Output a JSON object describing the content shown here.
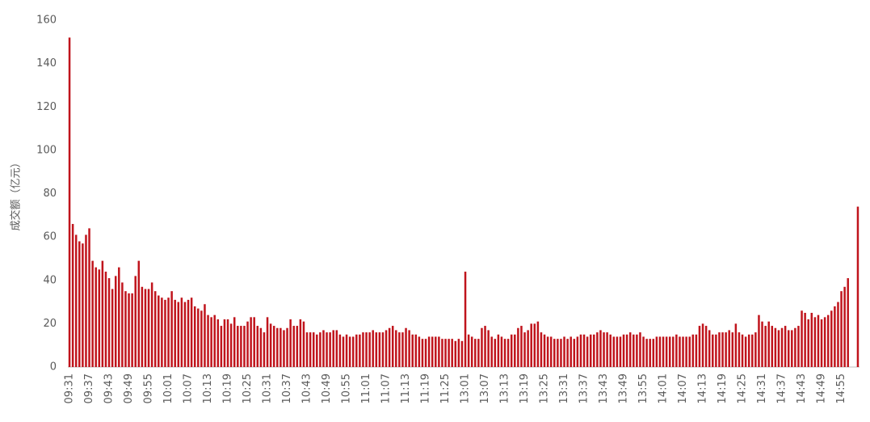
{
  "chart_data": {
    "type": "bar",
    "y_label": "成交额（亿元）",
    "categories": [
      "09:31",
      null,
      null,
      null,
      null,
      null,
      "09:37",
      null,
      null,
      null,
      null,
      null,
      "09:43",
      null,
      null,
      null,
      null,
      null,
      "09:49",
      null,
      null,
      null,
      null,
      null,
      "09:55",
      null,
      null,
      null,
      null,
      null,
      "10:01",
      null,
      null,
      null,
      null,
      null,
      "10:07",
      null,
      null,
      null,
      null,
      null,
      "10:13",
      null,
      null,
      null,
      null,
      null,
      "10:19",
      null,
      null,
      null,
      null,
      null,
      "10:25",
      null,
      null,
      null,
      null,
      null,
      "10:31",
      null,
      null,
      null,
      null,
      null,
      "10:37",
      null,
      null,
      null,
      null,
      null,
      "10:43",
      null,
      null,
      null,
      null,
      null,
      "10:49",
      null,
      null,
      null,
      null,
      null,
      "10:55",
      null,
      null,
      null,
      null,
      null,
      "11:01",
      null,
      null,
      null,
      null,
      null,
      "11:07",
      null,
      null,
      null,
      null,
      null,
      "11:13",
      null,
      null,
      null,
      null,
      null,
      "11:19",
      null,
      null,
      null,
      null,
      null,
      "11:25",
      null,
      null,
      null,
      null,
      null,
      "13:01",
      null,
      null,
      null,
      null,
      null,
      "13:07",
      null,
      null,
      null,
      null,
      null,
      "13:13",
      null,
      null,
      null,
      null,
      null,
      "13:19",
      null,
      null,
      null,
      null,
      null,
      "13:25",
      null,
      null,
      null,
      null,
      null,
      "13:31",
      null,
      null,
      null,
      null,
      null,
      "13:37",
      null,
      null,
      null,
      null,
      null,
      "13:43",
      null,
      null,
      null,
      null,
      null,
      "13:49",
      null,
      null,
      null,
      null,
      null,
      "13:55",
      null,
      null,
      null,
      null,
      null,
      "14:01",
      null,
      null,
      null,
      null,
      null,
      "14:07",
      null,
      null,
      null,
      null,
      null,
      "14:13",
      null,
      null,
      null,
      null,
      null,
      "14:19",
      null,
      null,
      null,
      null,
      null,
      "14:25",
      null,
      null,
      null,
      null,
      null,
      "14:31",
      null,
      null,
      null,
      null,
      null,
      "14:37",
      null,
      null,
      null,
      null,
      null,
      "14:43",
      null,
      null,
      null,
      null,
      null,
      "14:49",
      null,
      null,
      null,
      null,
      null,
      "14:55",
      null,
      null,
      null,
      null,
      null
    ],
    "values": [
      152,
      66,
      61,
      58,
      57,
      61,
      64,
      49,
      46,
      45,
      49,
      44,
      41,
      36,
      42,
      46,
      39,
      35,
      34,
      34,
      42,
      49,
      37,
      36,
      36,
      39,
      35,
      33,
      32,
      31,
      32,
      35,
      31,
      30,
      32,
      30,
      31,
      32,
      28,
      27,
      26,
      29,
      24,
      23,
      24,
      22,
      19,
      22,
      22,
      20,
      23,
      19,
      19,
      19,
      21,
      23,
      23,
      19,
      18,
      16,
      23,
      20,
      19,
      18,
      18,
      17,
      18,
      22,
      19,
      19,
      22,
      21,
      16,
      16,
      16,
      15,
      16,
      17,
      16,
      16,
      17,
      17,
      15,
      14,
      15,
      14,
      14,
      15,
      15,
      16,
      16,
      16,
      17,
      16,
      16,
      16,
      17,
      18,
      19,
      17,
      16,
      16,
      18,
      17,
      15,
      15,
      14,
      13,
      13,
      14,
      14,
      14,
      14,
      13,
      13,
      13,
      13,
      12,
      13,
      12,
      44,
      15,
      14,
      13,
      13,
      18,
      19,
      17,
      14,
      13,
      15,
      14,
      13,
      13,
      15,
      15,
      18,
      19,
      16,
      17,
      20,
      20,
      21,
      16,
      15,
      14,
      14,
      13,
      13,
      13,
      14,
      13,
      14,
      13,
      14,
      15,
      15,
      14,
      15,
      15,
      16,
      17,
      16,
      16,
      15,
      14,
      14,
      14,
      15,
      15,
      16,
      15,
      15,
      16,
      14,
      13,
      13,
      13,
      14,
      14,
      14,
      14,
      14,
      14,
      15,
      14,
      14,
      14,
      14,
      15,
      15,
      19,
      20,
      19,
      17,
      15,
      15,
      16,
      16,
      16,
      17,
      16,
      20,
      16,
      15,
      14,
      15,
      15,
      16,
      24,
      21,
      19,
      21,
      19,
      18,
      17,
      18,
      19,
      17,
      17,
      18,
      19,
      26,
      25,
      22,
      25,
      23,
      24,
      22,
      23,
      24,
      26,
      28,
      30,
      35,
      37,
      41,
      0,
      0,
      74
    ],
    "color": "#c0141c",
    "ylim": [
      0,
      160
    ],
    "yticks": [
      0,
      20,
      40,
      60,
      80,
      100,
      120,
      140,
      160
    ],
    "grid": false
  }
}
